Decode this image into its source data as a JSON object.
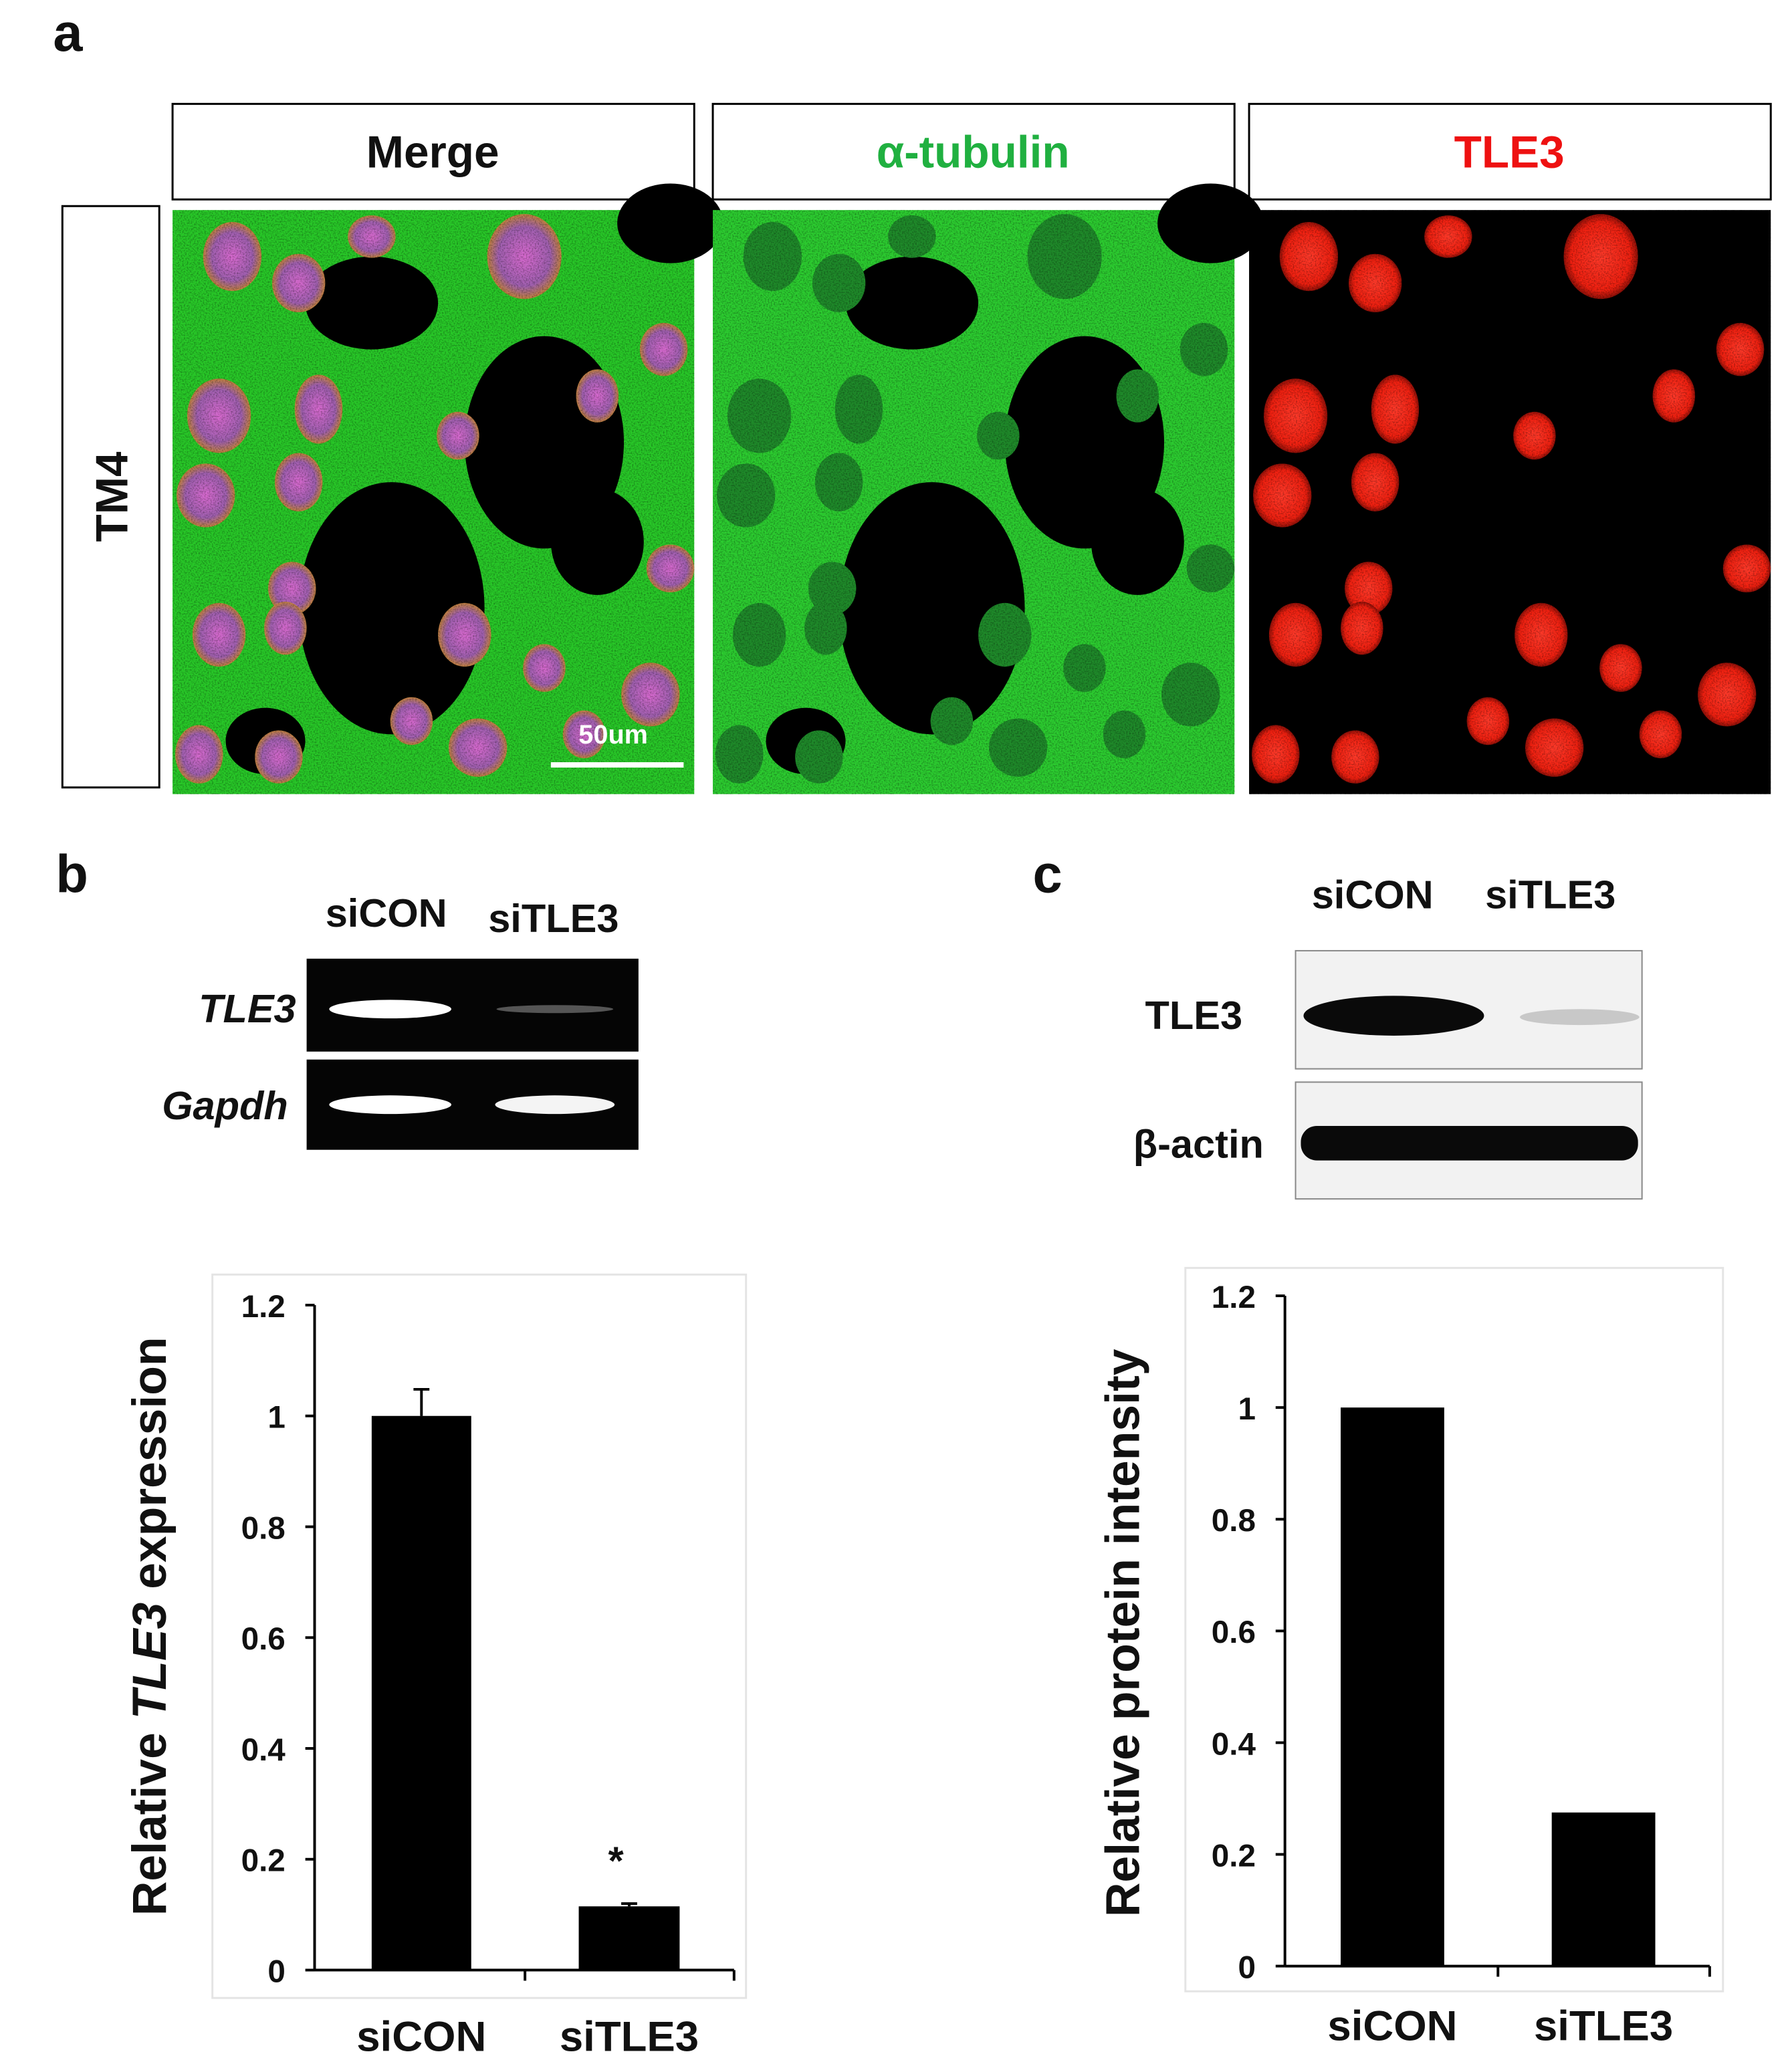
{
  "panel_a": {
    "label": "a",
    "columns": [
      "Merge",
      "α-tubulin",
      "TLE3"
    ],
    "row_label": "TM4",
    "scale_bar": "50um"
  },
  "panel_b": {
    "label": "b",
    "lanes": [
      "siCON",
      "siTLE3"
    ],
    "genes": [
      "TLE3",
      "Gapdh"
    ]
  },
  "panel_c": {
    "label": "c",
    "lanes": [
      "siCON",
      "siTLE3"
    ],
    "proteins": [
      "TLE3",
      "β-actin"
    ]
  },
  "chart_data": [
    {
      "type": "bar",
      "y_label": [
        "Relative",
        "TLE3",
        "expression"
      ],
      "categories": [
        "siCON",
        "siTLE3"
      ],
      "values": [
        1.0,
        0.115
      ],
      "errors": [
        0.048,
        0.005
      ],
      "significance": [
        null,
        "*"
      ],
      "color": "#000000",
      "ylim": [
        0,
        1.2
      ],
      "yticks": [
        0,
        0.2,
        0.4,
        0.6,
        0.8,
        1,
        1.2
      ]
    },
    {
      "type": "bar",
      "y_label": [
        "Relative protein intensity"
      ],
      "categories": [
        "siCON",
        "siTLE3"
      ],
      "values": [
        1.0,
        0.275
      ],
      "color": "#000000",
      "ylim": [
        0,
        1.2
      ],
      "yticks": [
        0,
        0.2,
        0.4,
        0.6,
        0.8,
        1,
        1.2
      ]
    }
  ]
}
